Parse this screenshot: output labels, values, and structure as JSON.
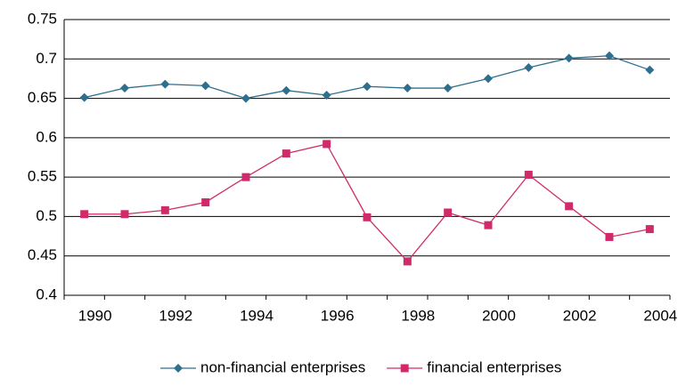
{
  "chart_data": {
    "type": "line",
    "categories": [
      1990,
      null,
      1992,
      null,
      1994,
      null,
      1996,
      null,
      1998,
      null,
      2000,
      null,
      2002,
      null,
      2004
    ],
    "series": [
      {
        "name": "non-financial enterprises",
        "color": "#2e6f8e",
        "marker": "diamond",
        "values": [
          0.651,
          0.663,
          0.668,
          0.666,
          0.65,
          0.66,
          0.654,
          0.665,
          0.663,
          0.663,
          0.675,
          0.689,
          0.701,
          0.704,
          0.686
        ]
      },
      {
        "name": "financial enterprises",
        "color": "#d12a6a",
        "marker": "square",
        "values": [
          0.503,
          0.503,
          0.508,
          0.518,
          0.55,
          0.58,
          0.592,
          0.499,
          0.443,
          0.505,
          0.489,
          0.553,
          0.513,
          0.474,
          0.484
        ]
      }
    ],
    "ylim": [
      0.4,
      0.75
    ],
    "yticks": [
      0.4,
      0.45,
      0.5,
      0.55,
      0.6,
      0.65,
      0.7,
      0.75
    ],
    "grid": true,
    "legend": "bottom"
  }
}
